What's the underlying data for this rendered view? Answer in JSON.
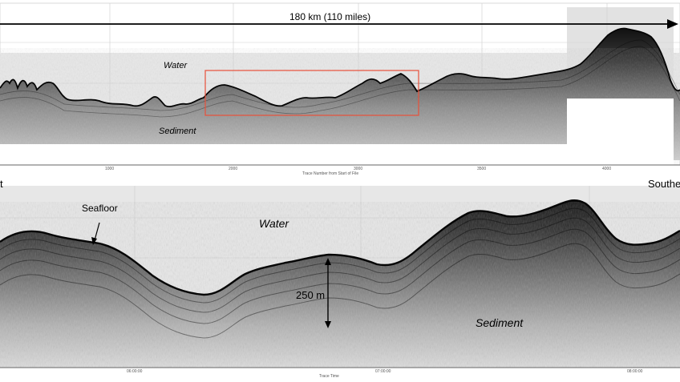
{
  "top_panel": {
    "distance_label": "180 km (110 miles)",
    "water_label": "Water",
    "sediment_label": "Sediment",
    "axis_title": "Trace Number from Start of File",
    "tick_labels": [
      "1000",
      "2000",
      "3000",
      "3500",
      "4000"
    ]
  },
  "bottom_panel": {
    "left_edge_label": "t",
    "right_edge_label": "Southe",
    "seafloor_label": "Seafloor",
    "water_label": "Water",
    "sediment_label": "Sediment",
    "scale_label": "250 m",
    "axis_title": "Trace Time",
    "tick_labels": [
      "06:00:00",
      "07:00:00",
      "08:00:00"
    ]
  },
  "colors": {
    "highlight_box": "#e8503a",
    "panel_bg": "#e9e9e9",
    "arrow": "#000000"
  }
}
